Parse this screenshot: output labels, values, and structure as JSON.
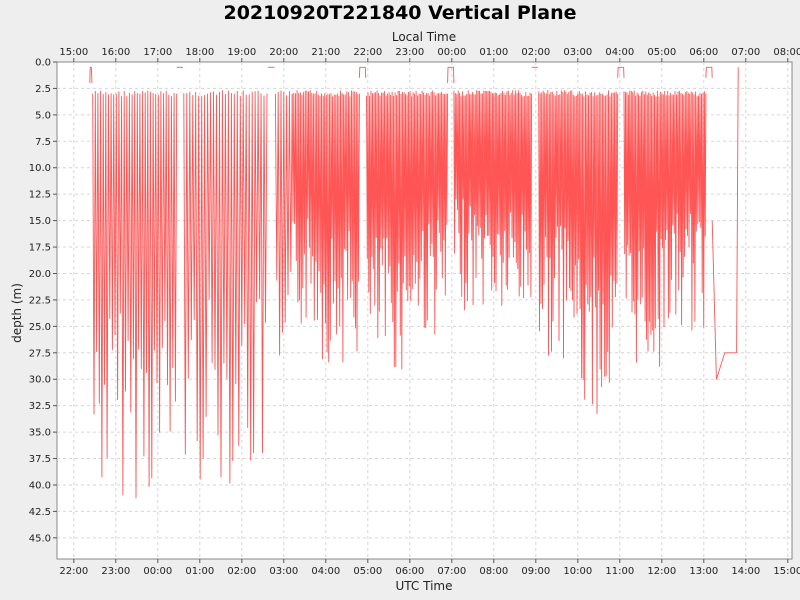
{
  "chart_data": {
    "type": "line",
    "title": "20210920T221840 Vertical Plane",
    "xlabel": "UTC Time",
    "x2label": "Local Time",
    "ylabel": "depth (m)",
    "y_inverted": true,
    "ylim": [
      0,
      47
    ],
    "xlim_hours_utc": [
      21.6,
      39.1
    ],
    "grid": true,
    "legend": "none",
    "line_color": "#ff5555",
    "x_ticks": [
      {
        "t": 22,
        "label": "22:00"
      },
      {
        "t": 23,
        "label": "23:00"
      },
      {
        "t": 24,
        "label": "00:00"
      },
      {
        "t": 25,
        "label": "01:00"
      },
      {
        "t": 26,
        "label": "02:00"
      },
      {
        "t": 27,
        "label": "03:00"
      },
      {
        "t": 28,
        "label": "04:00"
      },
      {
        "t": 29,
        "label": "05:00"
      },
      {
        "t": 30,
        "label": "06:00"
      },
      {
        "t": 31,
        "label": "07:00"
      },
      {
        "t": 32,
        "label": "08:00"
      },
      {
        "t": 33,
        "label": "09:00"
      },
      {
        "t": 34,
        "label": "10:00"
      },
      {
        "t": 35,
        "label": "11:00"
      },
      {
        "t": 36,
        "label": "12:00"
      },
      {
        "t": 37,
        "label": "13:00"
      },
      {
        "t": 38,
        "label": "14:00"
      },
      {
        "t": 39,
        "label": "15:00"
      }
    ],
    "x2_ticks": [
      {
        "t": 22,
        "label": "15:00"
      },
      {
        "t": 23,
        "label": "16:00"
      },
      {
        "t": 24,
        "label": "17:00"
      },
      {
        "t": 25,
        "label": "18:00"
      },
      {
        "t": 26,
        "label": "19:00"
      },
      {
        "t": 27,
        "label": "20:00"
      },
      {
        "t": 28,
        "label": "21:00"
      },
      {
        "t": 29,
        "label": "22:00"
      },
      {
        "t": 30,
        "label": "23:00"
      },
      {
        "t": 31,
        "label": "00:00"
      },
      {
        "t": 32,
        "label": "01:00"
      },
      {
        "t": 33,
        "label": "02:00"
      },
      {
        "t": 34,
        "label": "03:00"
      },
      {
        "t": 35,
        "label": "04:00"
      },
      {
        "t": 36,
        "label": "05:00"
      },
      {
        "t": 37,
        "label": "06:00"
      },
      {
        "t": 38,
        "label": "07:00"
      },
      {
        "t": 39,
        "label": "08:00"
      }
    ],
    "y_ticks": [
      {
        "v": 0,
        "label": "0.0"
      },
      {
        "v": 2.5,
        "label": "2.5"
      },
      {
        "v": 5,
        "label": "5.0"
      },
      {
        "v": 7.5,
        "label": "7.5"
      },
      {
        "v": 10,
        "label": "10.0"
      },
      {
        "v": 12.5,
        "label": "12.5"
      },
      {
        "v": 15,
        "label": "15.0"
      },
      {
        "v": 17.5,
        "label": "17.5"
      },
      {
        "v": 20,
        "label": "20.0"
      },
      {
        "v": 22.5,
        "label": "22.5"
      },
      {
        "v": 25,
        "label": "25.0"
      },
      {
        "v": 27.5,
        "label": "27.5"
      },
      {
        "v": 30,
        "label": "30.0"
      },
      {
        "v": 32.5,
        "label": "32.5"
      },
      {
        "v": 35,
        "label": "35.0"
      },
      {
        "v": 37.5,
        "label": "37.5"
      },
      {
        "v": 40,
        "label": "40.0"
      },
      {
        "v": 42.5,
        "label": "42.5"
      },
      {
        "v": 45,
        "label": "45.0"
      }
    ],
    "dive_segments": [
      {
        "t_start": 22.38,
        "t_end": 22.43,
        "top": 0.5,
        "bottom": 2.0,
        "kind": "surface"
      },
      {
        "t_start": 22.45,
        "t_end": 24.45,
        "top": 3.0,
        "bottom": 41.5,
        "count": 32
      },
      {
        "t_start": 24.45,
        "t_end": 24.6,
        "top": 0.5,
        "bottom": 0.5,
        "kind": "surface"
      },
      {
        "t_start": 24.62,
        "t_end": 26.6,
        "top": 3.0,
        "bottom": 40.0,
        "count": 28
      },
      {
        "t_start": 26.62,
        "t_end": 26.78,
        "top": 0.5,
        "bottom": 0.5,
        "kind": "surface"
      },
      {
        "t_start": 26.8,
        "t_end": 27.2,
        "top": 3.0,
        "bottom": 36.0,
        "count": 6
      },
      {
        "t_start": 27.2,
        "t_end": 27.9,
        "top": 3.0,
        "bottom": 25.5,
        "count": 18
      },
      {
        "t_start": 27.9,
        "t_end": 28.8,
        "top": 3.0,
        "bottom": 28.5,
        "count": 24
      },
      {
        "t_start": 28.8,
        "t_end": 28.95,
        "top": 0.5,
        "bottom": 1.5,
        "kind": "surface"
      },
      {
        "t_start": 28.97,
        "t_end": 29.9,
        "top": 3.0,
        "bottom": 29.5,
        "count": 26
      },
      {
        "t_start": 29.9,
        "t_end": 30.9,
        "top": 3.0,
        "bottom": 26.0,
        "count": 28
      },
      {
        "t_start": 30.9,
        "t_end": 31.05,
        "top": 0.5,
        "bottom": 2.0,
        "kind": "surface"
      },
      {
        "t_start": 31.05,
        "t_end": 32.0,
        "top": 3.0,
        "bottom": 23.5,
        "count": 28
      },
      {
        "t_start": 32.0,
        "t_end": 32.9,
        "top": 3.0,
        "bottom": 24.5,
        "count": 26
      },
      {
        "t_start": 32.9,
        "t_end": 33.05,
        "top": 0.5,
        "bottom": 0.5,
        "kind": "surface"
      },
      {
        "t_start": 33.07,
        "t_end": 34.0,
        "top": 3.0,
        "bottom": 28.0,
        "count": 26
      },
      {
        "t_start": 34.0,
        "t_end": 34.95,
        "top": 3.0,
        "bottom": 33.5,
        "count": 26
      },
      {
        "t_start": 34.95,
        "t_end": 35.1,
        "top": 0.5,
        "bottom": 1.5,
        "kind": "surface"
      },
      {
        "t_start": 35.1,
        "t_end": 36.0,
        "top": 3.0,
        "bottom": 29.0,
        "count": 26
      },
      {
        "t_start": 36.0,
        "t_end": 37.05,
        "top": 3.0,
        "bottom": 26.0,
        "count": 30
      },
      {
        "t_start": 37.05,
        "t_end": 37.2,
        "top": 0.5,
        "bottom": 1.5,
        "kind": "surface"
      },
      {
        "t_start": 37.2,
        "t_end": 37.3,
        "top": 15.0,
        "bottom": 30.0,
        "kind": "descent"
      },
      {
        "t_start": 37.3,
        "t_end": 37.78,
        "top": 27.5,
        "bottom": 30.0,
        "kind": "ramp"
      },
      {
        "t_start": 37.78,
        "t_end": 37.82,
        "top": 0.5,
        "bottom": 27.5,
        "kind": "ascent"
      }
    ]
  }
}
